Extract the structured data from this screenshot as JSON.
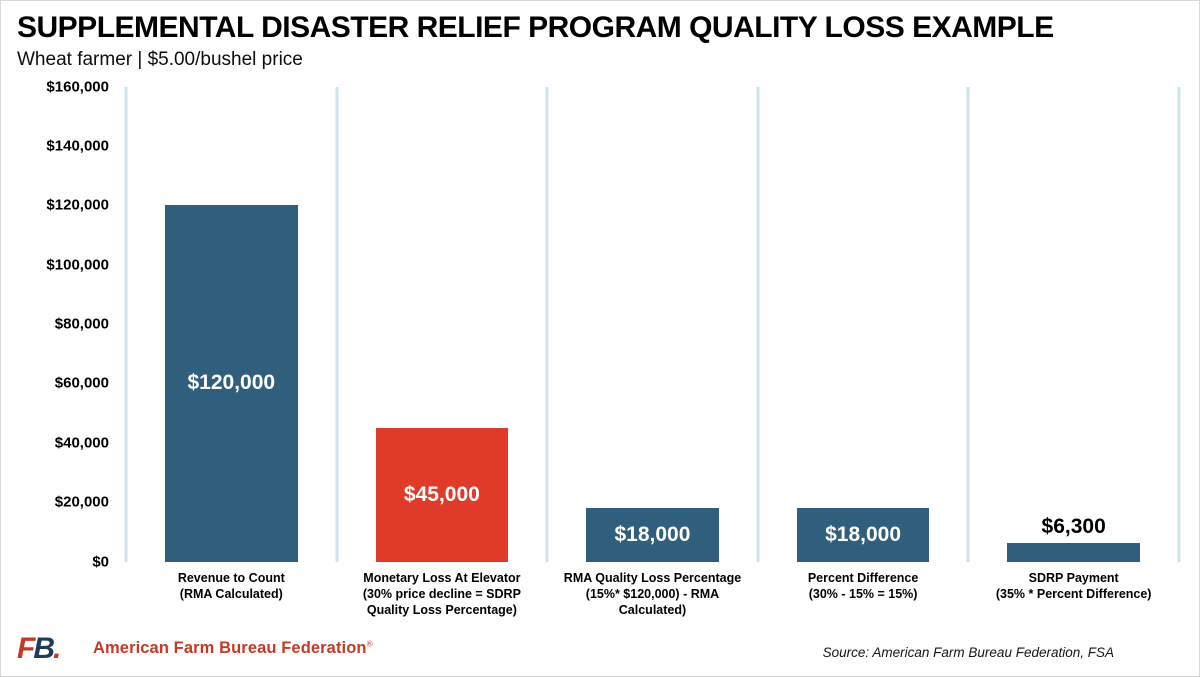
{
  "chart_data": {
    "type": "bar",
    "title": "SUPPLEMENTAL DISASTER RELIEF PROGRAM QUALITY LOSS EXAMPLE",
    "subtitle": "Wheat farmer | $5.00/bushel price",
    "categories": [
      "Revenue to Count\n(RMA Calculated)",
      "Monetary Loss At Elevator\n(30% price decline = SDRP\nQuality Loss Percentage)",
      "RMA Quality Loss Percentage\n(15%* $120,000) - RMA\nCalculated)",
      "Percent Difference\n(30% - 15% = 15%)",
      "SDRP Payment\n(35% * Percent Difference)"
    ],
    "values": [
      120000,
      45000,
      18000,
      18000,
      6300
    ],
    "bar_labels": [
      "$120,000",
      "$45,000",
      "$18,000",
      "$18,000",
      "$6,300"
    ],
    "bar_colors": [
      "#305f7e",
      "#e03a28",
      "#305f7e",
      "#305f7e",
      "#305f7e"
    ],
    "label_inside": [
      true,
      true,
      true,
      true,
      false
    ],
    "ylim": [
      0,
      160000
    ],
    "ytick_values": [
      0,
      20000,
      40000,
      60000,
      80000,
      100000,
      120000,
      140000,
      160000
    ],
    "ytick_labels": [
      "$0",
      "$20,000",
      "$40,000",
      "$60,000",
      "$80,000",
      "$100,000",
      "$120,000",
      "$140,000",
      "$160,000"
    ],
    "grid": "vertical category separator lines only",
    "separator_color": "#cfe3ec",
    "legend": "none"
  },
  "footer": {
    "logo_f": "F",
    "logo_b": "B",
    "logo_dot": ".",
    "org_name": "American Farm Bureau Federation",
    "reg_mark": "®",
    "org_color": "#c23b27",
    "source": "Source: American Farm Bureau Federation, FSA"
  }
}
